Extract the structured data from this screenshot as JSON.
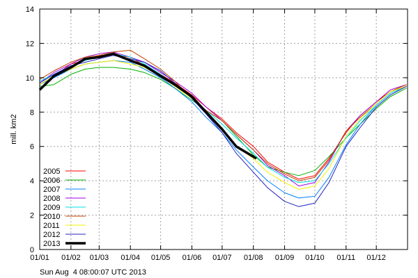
{
  "chart_data": {
    "type": "line",
    "title": "",
    "xlabel": "",
    "ylabel": "mill. km2",
    "ylim": [
      0,
      14
    ],
    "yticks": [
      0,
      2,
      4,
      6,
      8,
      10,
      12,
      14
    ],
    "xlim_day": [
      1,
      366
    ],
    "xticks": [
      {
        "day": 1,
        "label": "01/01"
      },
      {
        "day": 32,
        "label": "01/02"
      },
      {
        "day": 60,
        "label": "01/03"
      },
      {
        "day": 91,
        "label": "01/04"
      },
      {
        "day": 121,
        "label": "01/05"
      },
      {
        "day": 152,
        "label": "01/06"
      },
      {
        "day": 182,
        "label": "01/07"
      },
      {
        "day": 213,
        "label": "01/08"
      },
      {
        "day": 244,
        "label": "01/09"
      },
      {
        "day": 274,
        "label": "01/10"
      },
      {
        "day": 305,
        "label": "01/11"
      },
      {
        "day": 335,
        "label": "01/12"
      }
    ],
    "grid": true,
    "legend_position": "bottom-left",
    "x_days": [
      1,
      15,
      32,
      46,
      60,
      74,
      91,
      105,
      121,
      135,
      152,
      166,
      182,
      196,
      213,
      227,
      244,
      258,
      274,
      288,
      305,
      319,
      335,
      349,
      365
    ],
    "series": [
      {
        "name": "2005",
        "color": "#ff0000",
        "values": [
          9.6,
          10.1,
          10.8,
          11.0,
          11.3,
          11.3,
          11.2,
          10.7,
          10.2,
          9.7,
          9.0,
          8.3,
          7.6,
          6.8,
          6.0,
          5.1,
          4.5,
          4.1,
          4.3,
          5.3,
          6.8,
          7.8,
          8.6,
          9.2,
          9.5
        ]
      },
      {
        "name": "2006",
        "color": "#00b000",
        "values": [
          9.5,
          9.6,
          10.2,
          10.5,
          10.6,
          10.6,
          10.5,
          10.3,
          9.9,
          9.4,
          8.7,
          8.1,
          7.5,
          6.6,
          5.5,
          4.8,
          4.5,
          4.3,
          4.6,
          5.4,
          6.5,
          7.3,
          8.2,
          8.9,
          9.4
        ]
      },
      {
        "name": "2007",
        "color": "#0080ff",
        "values": [
          9.6,
          10.0,
          10.5,
          10.8,
          10.9,
          11.0,
          10.9,
          10.5,
          10.0,
          9.4,
          8.6,
          7.7,
          6.8,
          5.8,
          4.8,
          4.0,
          3.3,
          3.0,
          3.1,
          4.2,
          6.1,
          7.3,
          8.4,
          9.1,
          9.5
        ]
      },
      {
        "name": "2008",
        "color": "#a000e0",
        "values": [
          9.7,
          10.3,
          10.8,
          11.2,
          11.4,
          11.5,
          11.2,
          10.9,
          10.3,
          9.8,
          9.1,
          8.3,
          7.5,
          6.7,
          5.8,
          4.9,
          4.3,
          3.7,
          3.9,
          5.1,
          6.9,
          7.8,
          8.6,
          9.3,
          9.6
        ]
      },
      {
        "name": "2009",
        "color": "#00e0e0",
        "values": [
          9.8,
          10.2,
          10.7,
          11.0,
          11.2,
          11.4,
          11.2,
          10.8,
          10.2,
          9.6,
          8.9,
          8.1,
          7.3,
          6.5,
          5.6,
          4.8,
          4.2,
          3.9,
          4.0,
          5.0,
          6.5,
          7.5,
          8.4,
          9.1,
          9.5
        ]
      },
      {
        "name": "2010",
        "color": "#c04000",
        "values": [
          9.9,
          10.4,
          10.9,
          11.2,
          11.3,
          11.5,
          11.6,
          11.1,
          10.5,
          9.8,
          8.8,
          8.1,
          7.5,
          6.7,
          5.8,
          5.0,
          4.4,
          4.0,
          4.2,
          5.2,
          6.9,
          7.7,
          8.5,
          9.2,
          9.6
        ]
      },
      {
        "name": "2011",
        "color": "#f0f000",
        "values": [
          9.6,
          10.1,
          10.5,
          10.8,
          10.9,
          11.0,
          10.8,
          10.6,
          10.1,
          9.5,
          8.8,
          8.0,
          7.0,
          6.0,
          5.3,
          4.5,
          3.9,
          3.5,
          3.7,
          4.7,
          6.6,
          7.6,
          8.5,
          9.2,
          9.5
        ]
      },
      {
        "name": "2012",
        "color": "#2020c0",
        "values": [
          9.7,
          10.2,
          10.7,
          10.9,
          11.1,
          11.3,
          11.1,
          10.9,
          10.4,
          9.7,
          8.8,
          7.9,
          6.8,
          5.6,
          4.5,
          3.6,
          2.8,
          2.5,
          2.7,
          3.9,
          6.0,
          7.1,
          8.3,
          9.0,
          9.5
        ]
      },
      {
        "name": "2013",
        "color": "#000000",
        "bold": true,
        "x_days": [
          1,
          15,
          32,
          46,
          60,
          74,
          91,
          105,
          121,
          135,
          152,
          166,
          182,
          196,
          216
        ],
        "values": [
          9.3,
          10.1,
          10.6,
          11.1,
          11.2,
          11.4,
          11.0,
          10.7,
          10.1,
          9.6,
          8.9,
          8.0,
          7.0,
          6.0,
          5.3
        ]
      }
    ]
  },
  "timestamp": "Sun Aug  4 08:00:07 UTC 2013"
}
